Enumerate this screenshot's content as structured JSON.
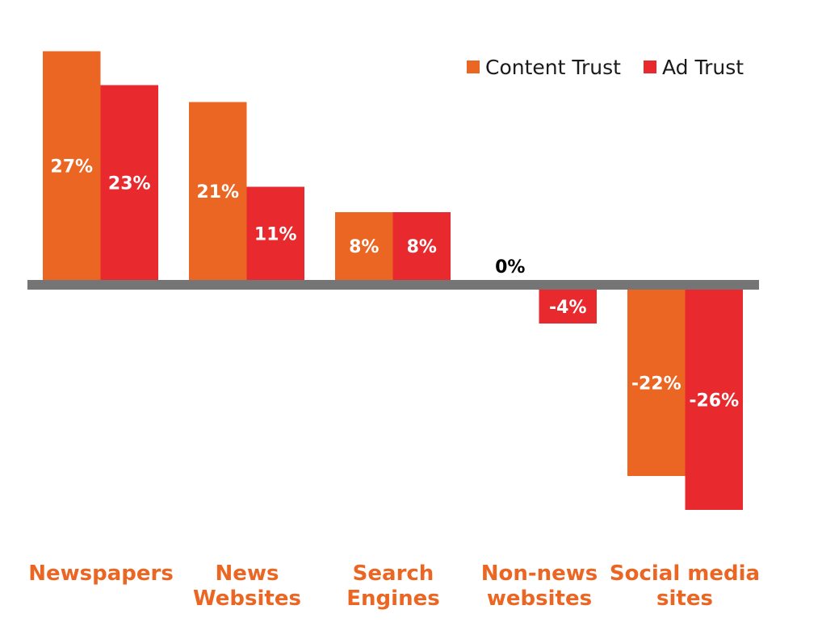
{
  "chart_data": {
    "type": "bar",
    "title": "",
    "xlabel": "",
    "ylabel": "",
    "ylim": [
      -30,
      30
    ],
    "categories": [
      [
        "Newspapers"
      ],
      [
        "News",
        "Websites"
      ],
      [
        "Search",
        "Engines"
      ],
      [
        "Non-news",
        "websites"
      ],
      [
        "Social media",
        "sites"
      ]
    ],
    "series": [
      {
        "name": "Content Trust",
        "color": "#EC6623",
        "values": [
          27,
          21,
          8,
          0,
          -22
        ],
        "labels": [
          "27%",
          "21%",
          "8%",
          "0%",
          "-22%"
        ]
      },
      {
        "name": "Ad Trust",
        "color": "#E8292E",
        "values": [
          23,
          11,
          8,
          -4,
          -26
        ],
        "labels": [
          "23%",
          "11%",
          "8%",
          "-4%",
          "-26%"
        ]
      }
    ],
    "legend": "top-right",
    "category_label_color": "#EC6623",
    "axis_color": "#757575"
  }
}
